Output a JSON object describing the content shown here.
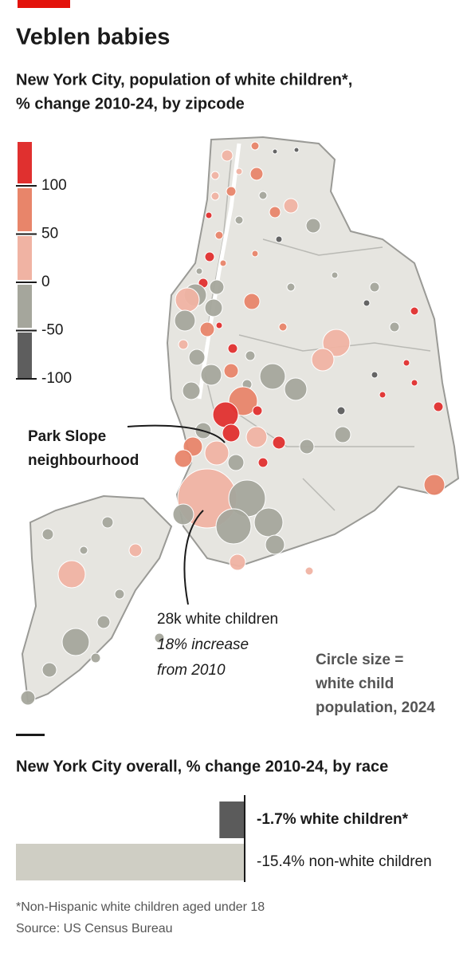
{
  "header": {
    "title": "Veblen babies",
    "subtitle": [
      "New York City, population of white children*,",
      "% change 2010-24, by zipcode"
    ]
  },
  "map": {
    "legend": {
      "ticks": [
        100,
        50,
        0,
        -50,
        -100
      ],
      "colors": [
        "#e0302f",
        "#e8856a",
        "#f0b3a3",
        "#a5a69c",
        "#5e5e5e"
      ]
    },
    "park_slope": [
      "Park Slope",
      "neighbourhood"
    ],
    "callout": [
      "28k white children",
      "18% increase",
      "from 2010"
    ],
    "size_note": [
      "Circle size =",
      "white child",
      "population, 2024"
    ]
  },
  "chart_data": {
    "type": "bar",
    "orientation": "horizontal",
    "title": "New York City overall, % change 2010-24, by race",
    "categories": [
      "white children*",
      "non-white children"
    ],
    "values": [
      -1.7,
      -15.4
    ],
    "value_labels": [
      "-1.7% white children*",
      "-15.4% non-white children"
    ],
    "colors": [
      "#5b5b5b",
      "#cfcec4"
    ],
    "xlim": [
      -15.4,
      0
    ]
  },
  "footer": {
    "note": "*Non-Hispanic white children aged under 18",
    "source": "Source: US Census Bureau"
  }
}
